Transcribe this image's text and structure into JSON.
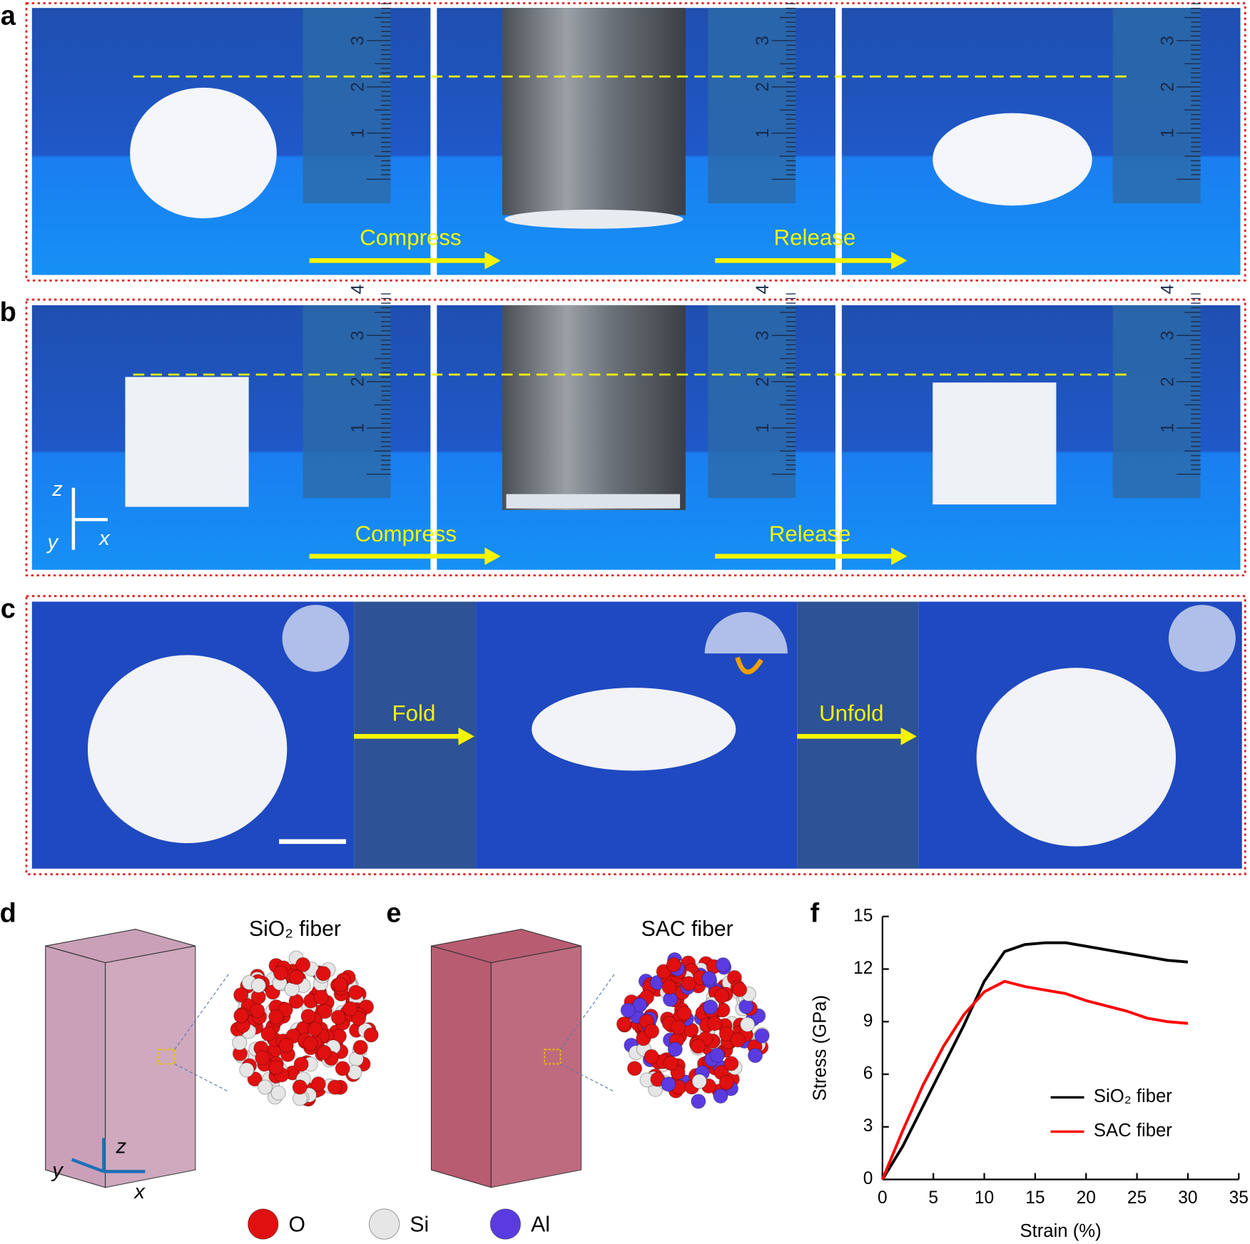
{
  "panels": {
    "labels": [
      "a",
      "b",
      "c",
      "d",
      "e",
      "f"
    ]
  },
  "photos": {
    "compress": "Compress",
    "release": "Release",
    "fold": "Fold",
    "unfold": "Unfold",
    "ruler_ticks": [
      "1",
      "2",
      "3",
      "4"
    ],
    "axes": [
      "z",
      "y",
      "x"
    ]
  },
  "models": {
    "titles": [
      "SiO₂ fiber",
      "SAC fiber"
    ],
    "atoms": [
      {
        "name": "O",
        "color": "#e01010"
      },
      {
        "name": "Si",
        "color": "#e6e6e6"
      },
      {
        "name": "Al",
        "color": "#5a3be0"
      }
    ]
  },
  "chart_data": {
    "type": "line",
    "xlabel": "Strain (%)",
    "ylabel": "Stress (GPa)",
    "x": [
      0,
      2,
      4,
      6,
      8,
      10,
      12,
      14,
      16,
      18,
      20,
      22,
      24,
      26,
      28,
      30
    ],
    "series": [
      {
        "name": "SiO₂ fiber",
        "color": "#000000",
        "values": [
          0,
          1.9,
          4.2,
          6.5,
          8.8,
          11.3,
          13.0,
          13.4,
          13.5,
          13.5,
          13.3,
          13.1,
          12.9,
          12.7,
          12.5,
          12.4
        ]
      },
      {
        "name": "SAC fiber",
        "color": "#ff0000",
        "values": [
          0,
          2.8,
          5.4,
          7.6,
          9.4,
          10.7,
          11.3,
          11.0,
          10.8,
          10.6,
          10.2,
          9.9,
          9.6,
          9.2,
          9.0,
          8.9
        ]
      }
    ],
    "xlim": [
      0,
      35
    ],
    "xticks": [
      0,
      5,
      10,
      15,
      20,
      25,
      30,
      35
    ],
    "ylim": [
      0,
      15
    ],
    "yticks": [
      0,
      3,
      6,
      9,
      12,
      15
    ]
  }
}
